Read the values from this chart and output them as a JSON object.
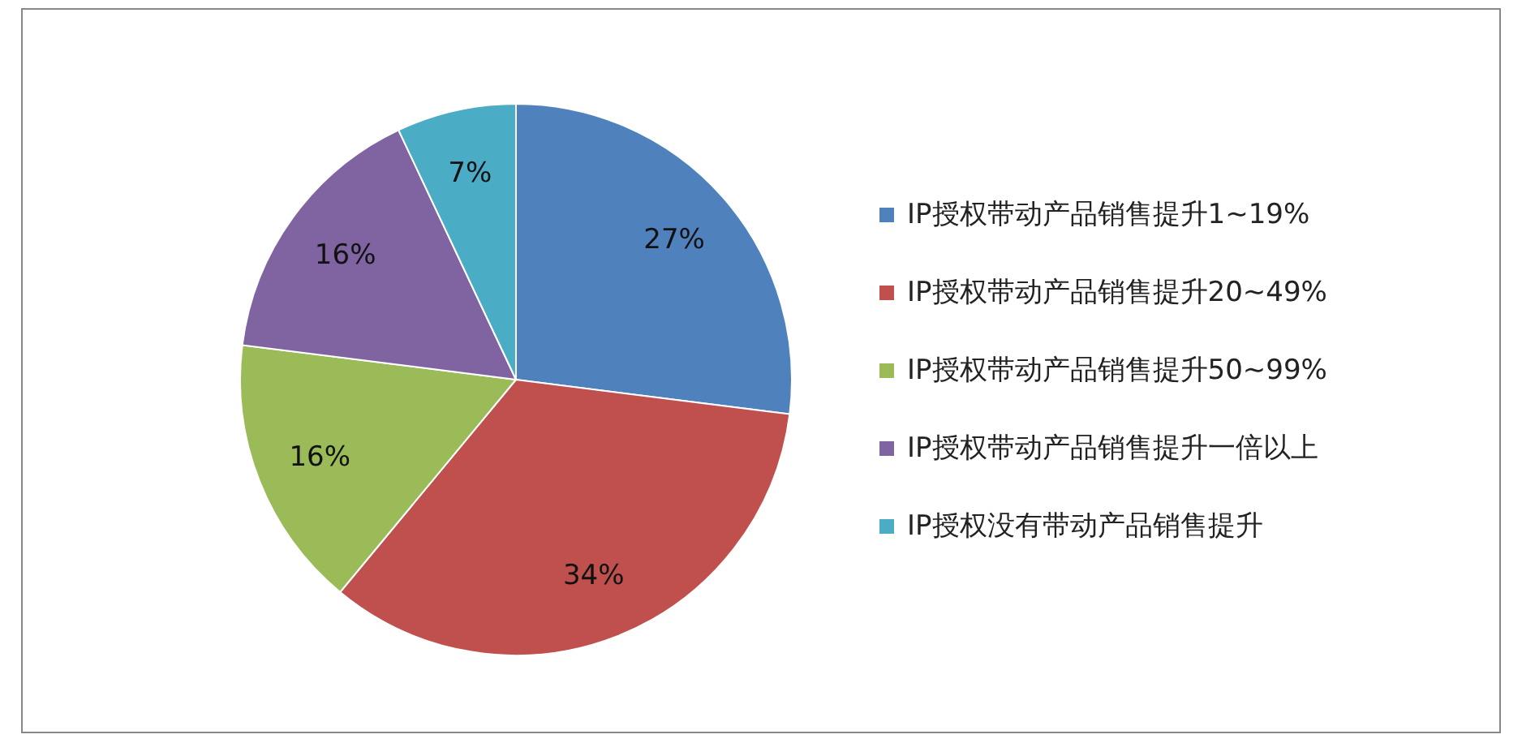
{
  "chart_data": {
    "type": "pie",
    "categories": [
      "IP授权带动产品销售提升1~19%",
      "IP授权带动产品销售提升20~49%",
      "IP授权带动产品销售提升50~99%",
      "IP授权带动产品销售提升一倍以上",
      "IP授权没有带动产品销售提升"
    ],
    "values": [
      27,
      34,
      16,
      16,
      7
    ],
    "colors": [
      "#4f81bd",
      "#c0504d",
      "#9bbb59",
      "#8064a2",
      "#4bacc6"
    ],
    "value_labels": [
      "27%",
      "34%",
      "16%",
      "16%",
      "7%"
    ],
    "legend": "right"
  }
}
